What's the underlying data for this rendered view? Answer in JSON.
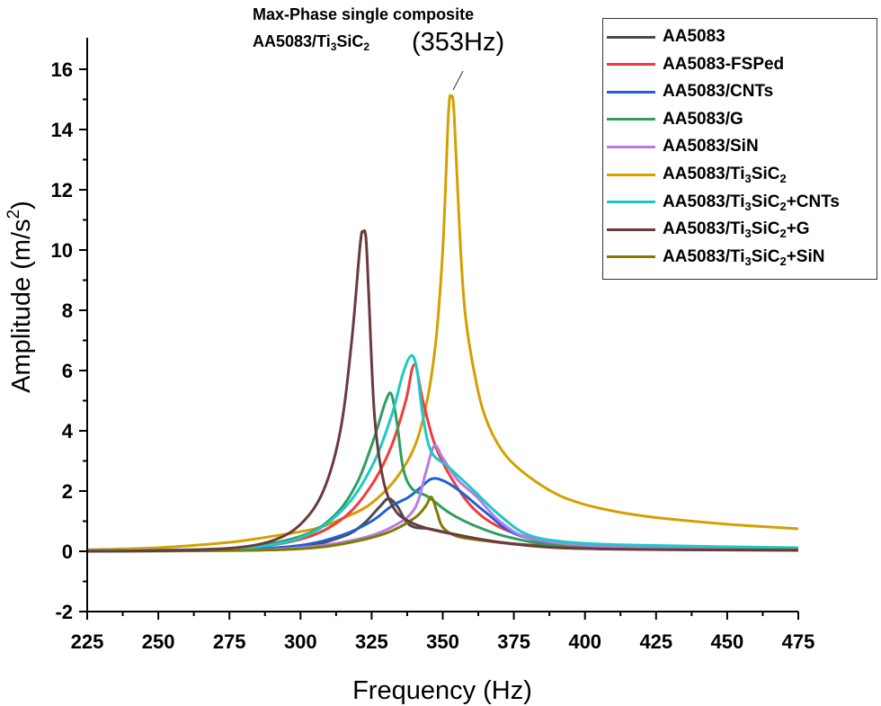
{
  "chart_data": {
    "type": "line",
    "title": "",
    "xlabel": "Frequency (Hz)",
    "ylabel": "Amplitude (m/s²)",
    "ylabel_parts": {
      "main": "Amplitude (m/s",
      "sup": "2",
      "end": ")"
    },
    "xlim": [
      225,
      475
    ],
    "ylim": [
      -2,
      17
    ],
    "xticks": [
      225,
      250,
      275,
      300,
      325,
      350,
      375,
      400,
      425,
      450,
      475
    ],
    "yticks": [
      -2,
      0,
      2,
      4,
      6,
      8,
      10,
      12,
      14,
      16
    ],
    "grid": false,
    "legend_position": "upper right",
    "annotations": [
      {
        "text": "Max-Phase single composite",
        "bold": true
      },
      {
        "text_main": "AA5083/Ti",
        "sub1": "3",
        "mid": "SiC",
        "sub2": "2",
        "bold": true
      },
      {
        "text": "(353Hz)",
        "points_to": [
          353,
          15.1
        ]
      }
    ],
    "series": [
      {
        "name": "AA5083",
        "label_parts": [
          "AA5083"
        ],
        "color": "#4a4a4a",
        "points": [
          [
            225,
            0.02
          ],
          [
            275,
            0.05
          ],
          [
            300,
            0.15
          ],
          [
            315,
            0.5
          ],
          [
            322,
            0.9
          ],
          [
            328,
            1.5
          ],
          [
            331,
            1.75
          ],
          [
            334,
            1.5
          ],
          [
            337,
            1.0
          ],
          [
            340,
            0.8
          ],
          [
            345,
            0.75
          ],
          [
            350,
            0.65
          ],
          [
            360,
            0.45
          ],
          [
            375,
            0.25
          ],
          [
            400,
            0.12
          ],
          [
            425,
            0.08
          ],
          [
            475,
            0.06
          ]
        ]
      },
      {
        "name": "AA5083-FSPed",
        "label_parts": [
          "AA5083-FSPed"
        ],
        "color": "#f03c3c",
        "points": [
          [
            225,
            0.02
          ],
          [
            275,
            0.08
          ],
          [
            300,
            0.4
          ],
          [
            315,
            1.1
          ],
          [
            325,
            2.2
          ],
          [
            332,
            3.5
          ],
          [
            337,
            5.0
          ],
          [
            340,
            6.2
          ],
          [
            343,
            5.0
          ],
          [
            347,
            3.6
          ],
          [
            352,
            2.6
          ],
          [
            360,
            1.5
          ],
          [
            370,
            0.8
          ],
          [
            385,
            0.35
          ],
          [
            400,
            0.2
          ],
          [
            425,
            0.12
          ],
          [
            475,
            0.08
          ]
        ]
      },
      {
        "name": "AA5083/CNTs",
        "label_parts": [
          "AA5083/CNTs"
        ],
        "color": "#1f5fd6",
        "points": [
          [
            225,
            0.02
          ],
          [
            275,
            0.05
          ],
          [
            300,
            0.2
          ],
          [
            315,
            0.55
          ],
          [
            325,
            1.0
          ],
          [
            332,
            1.5
          ],
          [
            338,
            1.8
          ],
          [
            342,
            2.1
          ],
          [
            346,
            2.4
          ],
          [
            350,
            2.35
          ],
          [
            356,
            2.0
          ],
          [
            365,
            1.3
          ],
          [
            375,
            0.6
          ],
          [
            390,
            0.25
          ],
          [
            410,
            0.15
          ],
          [
            440,
            0.1
          ],
          [
            475,
            0.08
          ]
        ]
      },
      {
        "name": "AA5083/G",
        "label_parts": [
          "AA5083/G"
        ],
        "color": "#2e9e5e",
        "points": [
          [
            225,
            0.02
          ],
          [
            275,
            0.1
          ],
          [
            300,
            0.5
          ],
          [
            312,
            1.2
          ],
          [
            320,
            2.3
          ],
          [
            326,
            3.8
          ],
          [
            330,
            5.0
          ],
          [
            332,
            5.2
          ],
          [
            334,
            4.2
          ],
          [
            336,
            2.8
          ],
          [
            339,
            2.1
          ],
          [
            345,
            1.8
          ],
          [
            352,
            1.3
          ],
          [
            360,
            0.9
          ],
          [
            372,
            0.5
          ],
          [
            390,
            0.2
          ],
          [
            420,
            0.1
          ],
          [
            475,
            0.07
          ]
        ]
      },
      {
        "name": "AA5083/SiN",
        "label_parts": [
          "AA5083/SiN"
        ],
        "color": "#b57de6",
        "points": [
          [
            225,
            0.01
          ],
          [
            275,
            0.03
          ],
          [
            300,
            0.12
          ],
          [
            320,
            0.4
          ],
          [
            332,
            0.8
          ],
          [
            340,
            1.4
          ],
          [
            344,
            2.6
          ],
          [
            347,
            3.5
          ],
          [
            350,
            3.1
          ],
          [
            355,
            2.4
          ],
          [
            362,
            1.8
          ],
          [
            370,
            1.0
          ],
          [
            380,
            0.45
          ],
          [
            400,
            0.2
          ],
          [
            425,
            0.12
          ],
          [
            475,
            0.08
          ]
        ]
      },
      {
        "name": "AA5083/Ti3SiC2",
        "label_parts": [
          "AA5083/Ti",
          "3",
          "SiC",
          "2"
        ],
        "color": "#d4a000",
        "points": [
          [
            225,
            0.05
          ],
          [
            250,
            0.12
          ],
          [
            275,
            0.3
          ],
          [
            290,
            0.5
          ],
          [
            305,
            0.75
          ],
          [
            315,
            1.1
          ],
          [
            325,
            1.6
          ],
          [
            335,
            2.6
          ],
          [
            342,
            4.0
          ],
          [
            347,
            6.5
          ],
          [
            350,
            10.0
          ],
          [
            352,
            14.5
          ],
          [
            353,
            15.1
          ],
          [
            354,
            14.5
          ],
          [
            356,
            10.5
          ],
          [
            358,
            7.8
          ],
          [
            362,
            5.5
          ],
          [
            366,
            4.2
          ],
          [
            372,
            3.2
          ],
          [
            380,
            2.5
          ],
          [
            390,
            1.9
          ],
          [
            400,
            1.55
          ],
          [
            412,
            1.3
          ],
          [
            425,
            1.12
          ],
          [
            450,
            0.9
          ],
          [
            475,
            0.75
          ]
        ]
      },
      {
        "name": "AA5083/Ti3SiC2+CNTs",
        "label_parts": [
          "AA5083/Ti",
          "3",
          "SiC",
          "2",
          "+CNTs"
        ],
        "color": "#1ec8c8",
        "points": [
          [
            225,
            0.02
          ],
          [
            275,
            0.08
          ],
          [
            300,
            0.45
          ],
          [
            315,
            1.4
          ],
          [
            325,
            2.8
          ],
          [
            332,
            4.5
          ],
          [
            336,
            5.9
          ],
          [
            339,
            6.5
          ],
          [
            341,
            6.0
          ],
          [
            343,
            4.5
          ],
          [
            346,
            3.3
          ],
          [
            352,
            2.8
          ],
          [
            360,
            2.1
          ],
          [
            370,
            1.2
          ],
          [
            380,
            0.55
          ],
          [
            395,
            0.3
          ],
          [
            420,
            0.2
          ],
          [
            475,
            0.12
          ]
        ]
      },
      {
        "name": "AA5083/Ti3SiC2+G",
        "label_parts": [
          "AA5083/Ti",
          "3",
          "SiC",
          "2",
          "+G"
        ],
        "color": "#6b3a3f",
        "points": [
          [
            225,
            0.0
          ],
          [
            250,
            0.02
          ],
          [
            275,
            0.1
          ],
          [
            290,
            0.35
          ],
          [
            300,
            0.9
          ],
          [
            308,
            2.0
          ],
          [
            314,
            4.0
          ],
          [
            318,
            7.0
          ],
          [
            321,
            10.2
          ],
          [
            322,
            10.6
          ],
          [
            323,
            10.4
          ],
          [
            324,
            8.5
          ],
          [
            326,
            4.5
          ],
          [
            329,
            2.4
          ],
          [
            333,
            1.4
          ],
          [
            338,
            1.0
          ],
          [
            345,
            0.75
          ],
          [
            355,
            0.55
          ],
          [
            370,
            0.3
          ],
          [
            390,
            0.12
          ],
          [
            420,
            0.06
          ],
          [
            475,
            0.03
          ]
        ]
      },
      {
        "name": "AA5083/Ti3SiC2+SiN",
        "label_parts": [
          "AA5083/Ti",
          "3",
          "SiC",
          "2",
          "+SiN"
        ],
        "color": "#7d7d00",
        "points": [
          [
            225,
            0.0
          ],
          [
            275,
            0.02
          ],
          [
            300,
            0.08
          ],
          [
            315,
            0.25
          ],
          [
            330,
            0.6
          ],
          [
            340,
            1.1
          ],
          [
            344,
            1.5
          ],
          [
            346,
            1.8
          ],
          [
            348,
            1.3
          ],
          [
            350,
            0.8
          ],
          [
            355,
            0.5
          ],
          [
            365,
            0.35
          ],
          [
            380,
            0.2
          ],
          [
            400,
            0.1
          ],
          [
            425,
            0.06
          ],
          [
            475,
            0.05
          ]
        ]
      }
    ]
  }
}
